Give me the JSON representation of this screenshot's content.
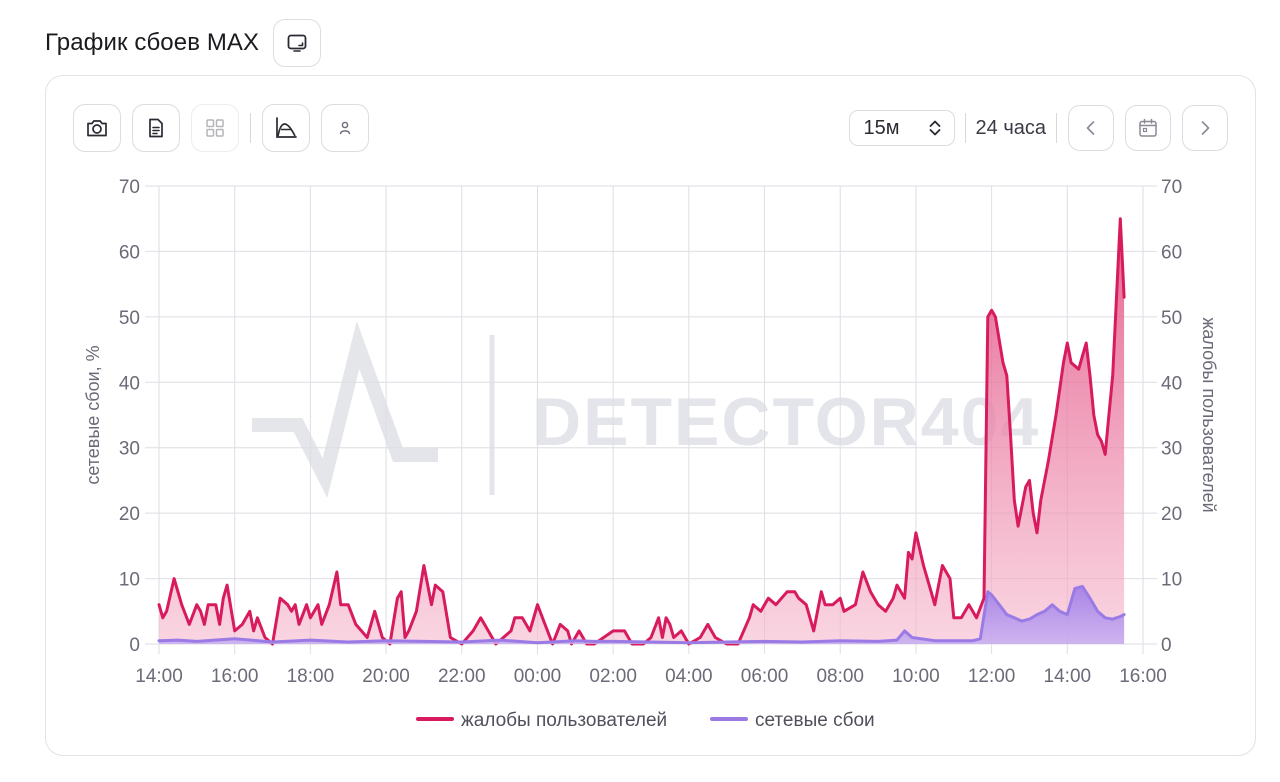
{
  "header": {
    "title": "График сбоев MAX"
  },
  "toolbar": {
    "interval_value": "15м",
    "range_label": "24 часа"
  },
  "watermark": "DETECTOR404",
  "colors": {
    "complaints": "#d81b5e",
    "network": "#9a7be6",
    "grid": "#dedee4"
  },
  "chart_data": {
    "type": "area",
    "title": "",
    "ylabel_left": "сетевые сбои, %",
    "ylabel_right": "жалобы пользователей",
    "ylim": [
      0,
      70
    ],
    "yticks": [
      0,
      10,
      20,
      30,
      40,
      50,
      60,
      70
    ],
    "xlim": [
      0,
      26
    ],
    "x_unit": "hours since 14:00",
    "xtick_labels": [
      "14:00",
      "16:00",
      "18:00",
      "20:00",
      "22:00",
      "00:00",
      "02:00",
      "04:00",
      "06:00",
      "08:00",
      "10:00",
      "12:00",
      "14:00",
      "16:00"
    ],
    "legend_position": "bottom-center",
    "grid": true,
    "series": [
      {
        "name": "жалобы пользователей",
        "axis": "right",
        "points": [
          [
            0,
            6
          ],
          [
            0.1,
            4
          ],
          [
            0.2,
            5
          ],
          [
            0.4,
            10
          ],
          [
            0.6,
            6
          ],
          [
            0.8,
            3
          ],
          [
            1,
            6
          ],
          [
            1.1,
            5
          ],
          [
            1.2,
            3
          ],
          [
            1.3,
            6
          ],
          [
            1.5,
            6
          ],
          [
            1.6,
            3
          ],
          [
            1.7,
            7
          ],
          [
            1.8,
            9
          ],
          [
            2,
            2
          ],
          [
            2.2,
            3
          ],
          [
            2.4,
            5
          ],
          [
            2.5,
            2
          ],
          [
            2.6,
            4
          ],
          [
            2.8,
            1
          ],
          [
            3,
            0
          ],
          [
            3.2,
            7
          ],
          [
            3.4,
            6
          ],
          [
            3.5,
            5
          ],
          [
            3.6,
            6
          ],
          [
            3.7,
            3
          ],
          [
            3.9,
            6
          ],
          [
            4,
            4
          ],
          [
            4.2,
            6
          ],
          [
            4.3,
            3
          ],
          [
            4.5,
            6
          ],
          [
            4.7,
            11
          ],
          [
            4.8,
            6
          ],
          [
            5,
            6
          ],
          [
            5.2,
            3
          ],
          [
            5.5,
            1
          ],
          [
            5.7,
            5
          ],
          [
            5.9,
            1
          ],
          [
            6.1,
            0
          ],
          [
            6.3,
            7
          ],
          [
            6.4,
            8
          ],
          [
            6.5,
            1
          ],
          [
            6.6,
            2
          ],
          [
            6.8,
            5
          ],
          [
            7,
            12
          ],
          [
            7.2,
            6
          ],
          [
            7.3,
            9
          ],
          [
            7.5,
            8
          ],
          [
            7.7,
            1
          ],
          [
            8,
            0
          ],
          [
            8.3,
            2
          ],
          [
            8.5,
            4
          ],
          [
            8.7,
            2
          ],
          [
            8.9,
            0
          ],
          [
            9.1,
            1
          ],
          [
            9.3,
            2
          ],
          [
            9.4,
            4
          ],
          [
            9.6,
            4
          ],
          [
            9.8,
            2
          ],
          [
            10,
            6
          ],
          [
            10.2,
            3
          ],
          [
            10.4,
            0
          ],
          [
            10.6,
            3
          ],
          [
            10.8,
            2
          ],
          [
            10.9,
            0
          ],
          [
            11.1,
            2
          ],
          [
            11.3,
            0
          ],
          [
            11.5,
            0
          ],
          [
            12,
            2
          ],
          [
            12.3,
            2
          ],
          [
            12.5,
            0
          ],
          [
            12.8,
            0
          ],
          [
            13,
            1
          ],
          [
            13.2,
            4
          ],
          [
            13.3,
            1
          ],
          [
            13.4,
            4
          ],
          [
            13.5,
            3
          ],
          [
            13.6,
            1
          ],
          [
            13.8,
            2
          ],
          [
            14,
            0
          ],
          [
            14.3,
            1
          ],
          [
            14.5,
            3
          ],
          [
            14.7,
            1
          ],
          [
            15,
            0
          ],
          [
            15.3,
            0
          ],
          [
            15.6,
            4
          ],
          [
            15.7,
            6
          ],
          [
            15.9,
            5
          ],
          [
            16.1,
            7
          ],
          [
            16.3,
            6
          ],
          [
            16.6,
            8
          ],
          [
            16.8,
            8
          ],
          [
            16.9,
            7
          ],
          [
            17.1,
            6
          ],
          [
            17.3,
            2
          ],
          [
            17.5,
            8
          ],
          [
            17.6,
            6
          ],
          [
            17.8,
            6
          ],
          [
            18,
            7
          ],
          [
            18.1,
            5
          ],
          [
            18.4,
            6
          ],
          [
            18.6,
            11
          ],
          [
            18.8,
            8
          ],
          [
            19,
            6
          ],
          [
            19.2,
            5
          ],
          [
            19.4,
            7
          ],
          [
            19.5,
            9
          ],
          [
            19.7,
            7
          ],
          [
            19.8,
            14
          ],
          [
            19.9,
            13
          ],
          [
            20,
            17
          ],
          [
            20.2,
            12
          ],
          [
            20.3,
            10
          ],
          [
            20.4,
            8
          ],
          [
            20.5,
            6
          ],
          [
            20.7,
            12
          ],
          [
            20.9,
            10
          ],
          [
            21,
            4
          ],
          [
            21.2,
            4
          ],
          [
            21.4,
            6
          ],
          [
            21.6,
            4
          ],
          [
            21.8,
            7
          ],
          [
            21.9,
            50
          ],
          [
            22,
            51
          ],
          [
            22.1,
            50
          ],
          [
            22.3,
            43
          ],
          [
            22.4,
            41
          ],
          [
            22.5,
            32
          ],
          [
            22.6,
            22
          ],
          [
            22.7,
            18
          ],
          [
            22.9,
            24
          ],
          [
            23,
            25
          ],
          [
            23.1,
            20
          ],
          [
            23.2,
            17
          ],
          [
            23.3,
            22
          ],
          [
            23.5,
            28
          ],
          [
            23.7,
            35
          ],
          [
            23.9,
            43
          ],
          [
            24,
            46
          ],
          [
            24.1,
            43
          ],
          [
            24.3,
            42
          ],
          [
            24.4,
            44
          ],
          [
            24.5,
            46
          ],
          [
            24.6,
            41
          ],
          [
            24.7,
            35
          ],
          [
            24.8,
            32
          ],
          [
            24.9,
            31
          ],
          [
            25,
            29
          ],
          [
            25.1,
            35
          ],
          [
            25.2,
            41
          ],
          [
            25.4,
            65
          ],
          [
            25.5,
            53
          ]
        ]
      },
      {
        "name": "сетевые сбои",
        "axis": "left",
        "points": [
          [
            0,
            0.5
          ],
          [
            0.5,
            0.6
          ],
          [
            1,
            0.4
          ],
          [
            2,
            0.8
          ],
          [
            3,
            0.3
          ],
          [
            4,
            0.6
          ],
          [
            5,
            0.3
          ],
          [
            6,
            0.5
          ],
          [
            7,
            0.4
          ],
          [
            8,
            0.3
          ],
          [
            9,
            0.6
          ],
          [
            10,
            0.2
          ],
          [
            11,
            0.5
          ],
          [
            11.5,
            0.4
          ],
          [
            12,
            0.4
          ],
          [
            13,
            0.3
          ],
          [
            14,
            0.2
          ],
          [
            15,
            0.3
          ],
          [
            16,
            0.4
          ],
          [
            17,
            0.3
          ],
          [
            18,
            0.5
          ],
          [
            19,
            0.4
          ],
          [
            19.5,
            0.6
          ],
          [
            19.7,
            2
          ],
          [
            19.9,
            1
          ],
          [
            20.5,
            0.5
          ],
          [
            21,
            0.5
          ],
          [
            21.5,
            0.5
          ],
          [
            21.7,
            0.8
          ],
          [
            21.9,
            8
          ],
          [
            22,
            7.5
          ],
          [
            22.2,
            6
          ],
          [
            22.4,
            4.5
          ],
          [
            22.6,
            4
          ],
          [
            22.8,
            3.5
          ],
          [
            23,
            3.8
          ],
          [
            23.2,
            4.5
          ],
          [
            23.4,
            5
          ],
          [
            23.6,
            6
          ],
          [
            23.8,
            5
          ],
          [
            24,
            4.5
          ],
          [
            24.2,
            8.5
          ],
          [
            24.4,
            8.8
          ],
          [
            24.6,
            7
          ],
          [
            24.8,
            5
          ],
          [
            25,
            4
          ],
          [
            25.2,
            3.8
          ],
          [
            25.4,
            4.2
          ],
          [
            25.5,
            4.5
          ]
        ]
      }
    ]
  }
}
